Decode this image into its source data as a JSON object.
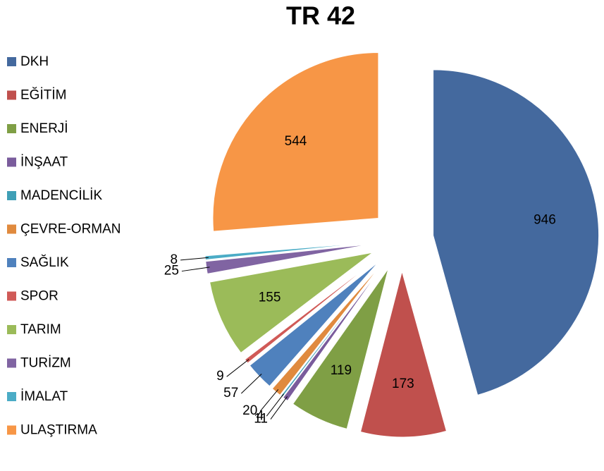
{
  "chart_data": {
    "type": "pie",
    "title": "TR 42",
    "categories": [
      "DKH",
      "EĞİTİM",
      "ENERJİ",
      "İNŞAAT",
      "MADENCİLİK",
      "ÇEVRE-ORMAN",
      "SAĞLIK",
      "SPOR",
      "TARIM",
      "TURİZM",
      "İMALAT",
      "ULAŞTIRMA"
    ],
    "values": [
      946,
      173,
      119,
      11,
      4,
      20,
      57,
      9,
      155,
      25,
      8,
      544
    ],
    "colors": [
      "#44699e",
      "#c0504d",
      "#7f9f45",
      "#7a5c9c",
      "#3f9fb6",
      "#e08a3e",
      "#4f81bd",
      "#d05a57",
      "#9bbb59",
      "#8064a2",
      "#4bacc6",
      "#f79646"
    ],
    "legend": "left"
  }
}
